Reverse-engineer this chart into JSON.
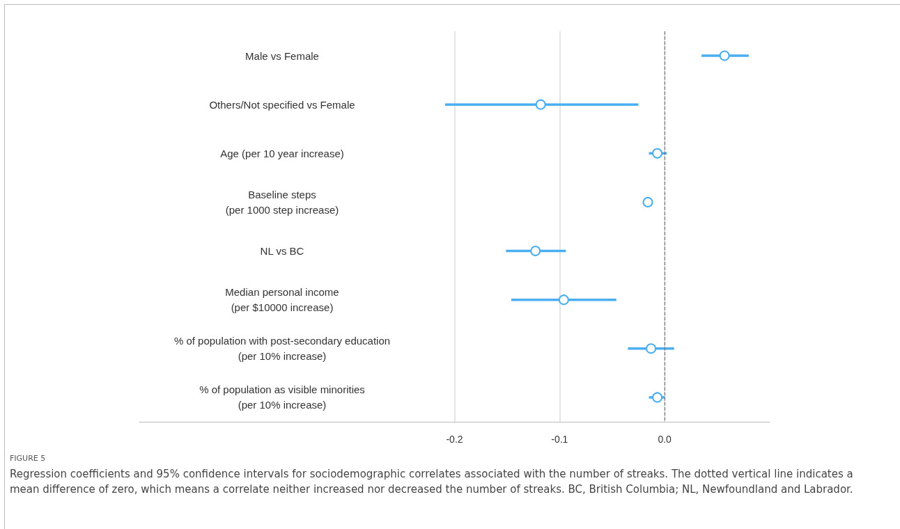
{
  "chart_data": {
    "type": "scatter",
    "orientation": "horizontal",
    "title": "FIGURE 5",
    "annotations": [
      "Regression coefficients and 95% confidence intervals for sociodemographic correlates associated with the number of streaks. The dotted vertical line indicates a mean difference of zero, which means a correlate neither increased nor decreased the number of streaks. BC, British Columbia; NL, Newfoundland and Labrador."
    ],
    "categories": [
      "Male vs Female",
      "Others/Not specified vs Female",
      "Age (per 10 year increase)",
      "Baseline steps\n(per 1000 step increase)",
      "NL vs BC",
      "Median personal income\n(per $10000 increase)",
      "% of population with post-secondary education\n(per 10% increase)",
      "% of population as visible minorities\n(per 10% increase)"
    ],
    "series": [
      {
        "color": "#4aaef0",
        "values": [
          0.057,
          -0.118,
          -0.007,
          -0.016,
          -0.123,
          -0.096,
          -0.013,
          -0.007
        ],
        "errors": [
          [
            0.035,
            0.08
          ],
          [
            -0.209,
            -0.025
          ],
          [
            -0.015,
            0.002
          ],
          null,
          [
            -0.151,
            -0.094
          ],
          [
            -0.146,
            -0.046
          ],
          [
            -0.035,
            0.009
          ],
          [
            -0.015,
            0.0
          ]
        ]
      }
    ],
    "xlim": [
      -0.5,
      0.1
    ],
    "xticks": [
      -0.2,
      -0.1,
      {
        "value": 0,
        "label": "0.0"
      }
    ],
    "grid": "x",
    "marker": "circle",
    "ref_lines": [
      {
        "axis": "x",
        "value": 0,
        "color": "#777777",
        "line_style": "dashed"
      }
    ]
  }
}
